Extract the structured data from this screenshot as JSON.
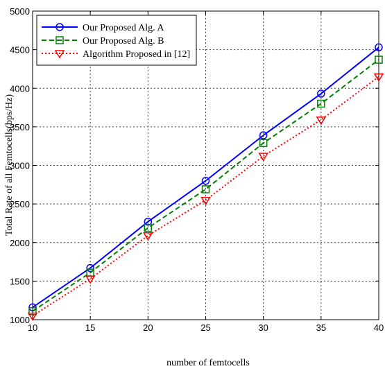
{
  "chart_data": {
    "type": "line",
    "xlabel": "number of femtocells",
    "ylabel": "Total Rate of all Femtocells(bps/Hz)",
    "xlim": [
      10,
      40
    ],
    "ylim": [
      1000,
      5000
    ],
    "xticks": [
      10,
      15,
      20,
      25,
      30,
      35,
      40
    ],
    "yticks": [
      1000,
      1500,
      2000,
      2500,
      3000,
      3500,
      4000,
      4500,
      5000
    ],
    "grid": true,
    "legend": "top-left",
    "x": [
      10,
      15,
      20,
      25,
      30,
      35,
      40
    ],
    "series": [
      {
        "name": "Our Proposed Alg. A",
        "values": [
          1160,
          1670,
          2270,
          2800,
          3390,
          3930,
          4530
        ],
        "color": "#0000ff",
        "line": "solid",
        "marker": "circle"
      },
      {
        "name": "Our Proposed Alg. B",
        "values": [
          1110,
          1610,
          2190,
          2690,
          3290,
          3800,
          4370
        ],
        "color": "#008000",
        "line": "dashed",
        "marker": "square"
      },
      {
        "name": "Algorithm Proposed in [12]",
        "values": [
          1050,
          1530,
          2090,
          2550,
          3120,
          3590,
          4150
        ],
        "color": "#ff0000",
        "line": "dotted",
        "marker": "triangle-down"
      }
    ]
  }
}
